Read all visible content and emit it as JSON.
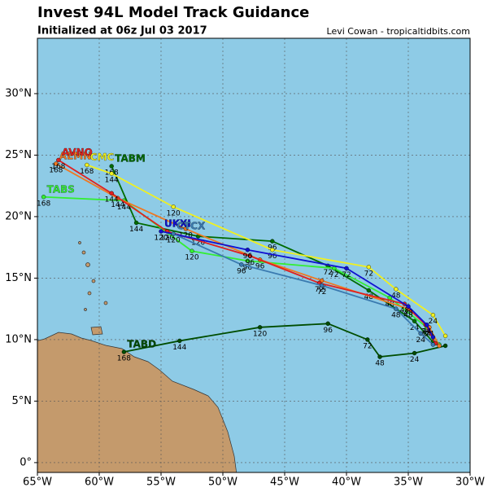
{
  "chart_data": {
    "type": "track_map",
    "title": "Invest 94L Model Track Guidance",
    "subtitle": "Initialized at 06z Jul 03 2017",
    "credit": "Levi Cowan - tropicaltidbits.com",
    "xlim": [
      -65,
      -30
    ],
    "ylim": [
      -0.8,
      34.5
    ],
    "xticks": [
      {
        "value": -65,
        "label": "65°W"
      },
      {
        "value": -60,
        "label": "60°W"
      },
      {
        "value": -55,
        "label": "55°W"
      },
      {
        "value": -50,
        "label": "50°W"
      },
      {
        "value": -45,
        "label": "45°W"
      },
      {
        "value": -40,
        "label": "40°W"
      },
      {
        "value": -35,
        "label": "35°W"
      },
      {
        "value": -30,
        "label": "30°W"
      }
    ],
    "yticks": [
      {
        "value": 0,
        "label": "0°"
      },
      {
        "value": 5,
        "label": "5°N"
      },
      {
        "value": 10,
        "label": "10°N"
      },
      {
        "value": 15,
        "label": "15°N"
      },
      {
        "value": 20,
        "label": "20°N"
      },
      {
        "value": 25,
        "label": "25°N"
      },
      {
        "value": 30,
        "label": "30°N"
      }
    ],
    "grid": true,
    "tracks": [
      {
        "name": "TABD",
        "color": "#004d00",
        "lon": [
          -32.0,
          -34.5,
          -37.3,
          -38.3,
          -41.5,
          -47.0,
          -53.5,
          -58.0
        ],
        "lat": [
          9.5,
          8.9,
          8.6,
          10.0,
          11.3,
          11.0,
          9.9,
          9.0
        ],
        "labels": [
          null,
          "24",
          "48",
          "72",
          "96",
          "120",
          "144",
          "168"
        ]
      },
      {
        "name": "TABM",
        "color": "#006b00",
        "lon": [
          -33.0,
          -34.5,
          -38.2,
          -41.5,
          -46.0,
          -52.0,
          -57.0,
          -59.0
        ],
        "lat": [
          9.8,
          11.5,
          14.0,
          16.0,
          18.0,
          18.4,
          19.5,
          24.1
        ],
        "labels": [
          null,
          "24",
          "48",
          "72",
          "96",
          "120",
          "144",
          "168"
        ]
      },
      {
        "name": "TABS",
        "color": "#33ee33",
        "lon": [
          -32.5,
          -33.5,
          -36.5,
          -41.0,
          -48.0,
          -52.5,
          -58.0,
          -64.5
        ],
        "lat": [
          9.6,
          11.0,
          13.4,
          15.8,
          16.4,
          17.2,
          21.3,
          21.6
        ],
        "labels": [
          null,
          "24",
          "48",
          "72",
          "96",
          "120",
          "144",
          "168"
        ]
      },
      {
        "name": "CMC",
        "color": "#f0f020",
        "lon": [
          -32.0,
          -33.0,
          -36.0,
          -38.2,
          -46.0,
          -54.0,
          -59.0,
          -61.0
        ],
        "lat": [
          10.3,
          12.0,
          14.1,
          15.9,
          17.3,
          20.8,
          23.5,
          24.2
        ],
        "labels": [
          null,
          "24",
          "48",
          "72",
          "96",
          "120",
          "144",
          "168"
        ]
      },
      {
        "name": "AEMN",
        "color": "#f07820",
        "lon": [
          -32.5,
          -33.3,
          -35.0,
          -42.0,
          -47.0,
          -53.0,
          -58.5,
          -63.5
        ],
        "lat": [
          9.5,
          11.0,
          12.5,
          14.8,
          16.5,
          19.0,
          21.5,
          24.3
        ],
        "labels": [
          null,
          "24",
          "48",
          "72",
          "96",
          "120",
          "144",
          "168"
        ]
      },
      {
        "name": "AVNO",
        "color": "#e02020",
        "lon": [
          -32.8,
          -33.6,
          -35.3,
          -42.2,
          -47.8,
          -54.5,
          -59.0,
          -63.3
        ],
        "lat": [
          9.7,
          11.2,
          12.9,
          14.6,
          16.8,
          18.8,
          21.9,
          24.6
        ],
        "labels": [
          null,
          "24",
          "48",
          "72",
          "96",
          "120",
          "144",
          "168"
        ]
      },
      {
        "name": "UKXI",
        "color": "#1010d0",
        "lon": [
          -33.0,
          -33.5,
          -35.0,
          -40.0,
          -48.0,
          -55.0
        ],
        "lat": [
          10.2,
          11.2,
          12.7,
          15.8,
          17.3,
          18.8
        ],
        "labels": [
          null,
          "24",
          "48",
          "72",
          "96",
          "120"
        ]
      },
      {
        "name": "CTCX",
        "color": "#3a7ab0",
        "lon": [
          -33.0,
          -34.0,
          -36.0,
          -42.0,
          -48.5,
          -54.0
        ],
        "lat": [
          9.6,
          10.5,
          12.5,
          14.4,
          16.1,
          18.6
        ],
        "labels": [
          null,
          "24",
          "48",
          "72",
          "96",
          "120"
        ]
      }
    ]
  }
}
